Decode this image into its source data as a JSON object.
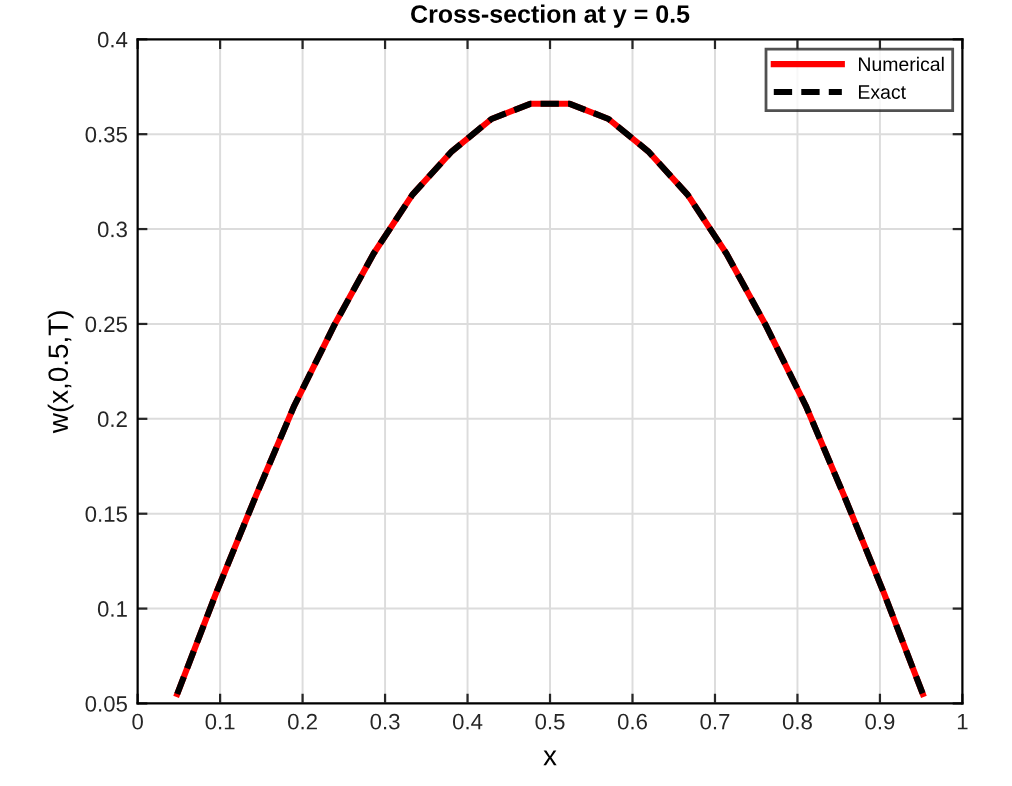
{
  "chart_data": {
    "type": "line",
    "title": "Cross-section at y = 0.5",
    "xlabel": "x",
    "ylabel": "w(x,0.5,T)",
    "x": [
      0.048,
      0.095,
      0.143,
      0.19,
      0.238,
      0.286,
      0.333,
      0.381,
      0.429,
      0.476,
      0.524,
      0.571,
      0.619,
      0.667,
      0.714,
      0.762,
      0.81,
      0.857,
      0.905,
      0.952
    ],
    "series": [
      {
        "name": "Numerical",
        "color": "#ff0000",
        "line_style": "solid",
        "values": [
          0.055,
          0.108,
          0.159,
          0.207,
          0.249,
          0.287,
          0.318,
          0.341,
          0.358,
          0.366,
          0.366,
          0.358,
          0.341,
          0.318,
          0.287,
          0.249,
          0.207,
          0.159,
          0.108,
          0.055
        ]
      },
      {
        "name": "Exact",
        "color": "#000000",
        "line_style": "dashed",
        "values": [
          0.055,
          0.108,
          0.159,
          0.207,
          0.249,
          0.287,
          0.318,
          0.341,
          0.358,
          0.366,
          0.366,
          0.358,
          0.341,
          0.318,
          0.287,
          0.249,
          0.207,
          0.159,
          0.108,
          0.055
        ]
      }
    ],
    "xlim": [
      0,
      1
    ],
    "xticks": [
      0,
      0.1,
      0.2,
      0.3,
      0.4,
      0.5,
      0.6,
      0.7,
      0.8,
      0.9,
      1
    ],
    "ylim": [
      0.05,
      0.4
    ],
    "yticks": [
      0.05,
      0.1,
      0.15,
      0.2,
      0.25,
      0.3,
      0.35,
      0.4
    ],
    "grid": true,
    "legend": "top right"
  }
}
